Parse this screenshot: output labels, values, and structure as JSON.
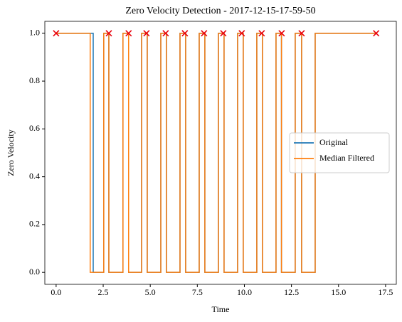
{
  "chart_data": {
    "type": "line",
    "title": "Zero Velocity Detection - 2017-12-15-17-59-50",
    "x_label": "Time",
    "y_label": "Zero Velocity",
    "xlim": [
      -0.6,
      18.07
    ],
    "ylim": [
      -0.05,
      1.05
    ],
    "xticks": [
      {
        "value": 0,
        "label": "0.0"
      },
      {
        "value": 2.5,
        "label": "2.5"
      },
      {
        "value": 5,
        "label": "5.0"
      },
      {
        "value": 7.5,
        "label": "7.5"
      },
      {
        "value": 10,
        "label": "10.0"
      },
      {
        "value": 12.5,
        "label": "12.5"
      },
      {
        "value": 15,
        "label": "15.0"
      },
      {
        "value": 17.5,
        "label": "17.5"
      }
    ],
    "yticks": [
      {
        "value": 0,
        "label": "0.0"
      },
      {
        "value": 0.2,
        "label": "0.2"
      },
      {
        "value": 0.4,
        "label": "0.4"
      },
      {
        "value": 0.6,
        "label": "0.6"
      },
      {
        "value": 0.8,
        "label": "0.8"
      },
      {
        "value": 1,
        "label": "1.0"
      }
    ],
    "legend": "center right",
    "series": [
      {
        "name": "Original",
        "color": "#1f77b4",
        "x": [
          0,
          1.97,
          1.97,
          2.53,
          2.53,
          2.8,
          2.8,
          3.55,
          3.55,
          3.85,
          3.85,
          4.54,
          4.54,
          4.84,
          4.84,
          5.56,
          5.56,
          5.86,
          5.86,
          6.58,
          6.58,
          6.88,
          6.88,
          7.6,
          7.6,
          7.9,
          7.9,
          8.62,
          8.62,
          8.92,
          8.92,
          9.64,
          9.64,
          9.94,
          9.94,
          10.66,
          10.66,
          10.96,
          10.96,
          11.68,
          11.68,
          11.97,
          11.97,
          12.7,
          12.7,
          13.04,
          13.04,
          13.76,
          13.76,
          17
        ],
        "values": [
          1,
          1,
          0,
          0,
          1,
          1,
          0,
          0,
          1,
          1,
          0,
          0,
          1,
          1,
          0,
          0,
          1,
          1,
          0,
          0,
          1,
          1,
          0,
          0,
          1,
          1,
          0,
          0,
          1,
          1,
          0,
          0,
          1,
          1,
          0,
          0,
          1,
          1,
          0,
          0,
          1,
          1,
          0,
          0,
          1,
          1,
          0,
          0,
          1,
          1
        ]
      },
      {
        "name": "Median Filtered",
        "color": "#ff7f0e",
        "x": [
          0,
          1.81,
          1.81,
          2.53,
          2.53,
          2.8,
          2.8,
          3.55,
          3.55,
          3.85,
          3.85,
          4.54,
          4.54,
          4.84,
          4.84,
          5.56,
          5.56,
          5.86,
          5.86,
          6.58,
          6.58,
          6.88,
          6.88,
          7.6,
          7.6,
          7.9,
          7.9,
          8.62,
          8.62,
          8.92,
          8.92,
          9.64,
          9.64,
          9.94,
          9.94,
          10.66,
          10.66,
          10.96,
          10.96,
          11.68,
          11.68,
          11.97,
          11.97,
          12.7,
          12.7,
          13.04,
          13.04,
          13.76,
          13.76,
          17
        ],
        "values": [
          1,
          1,
          0,
          0,
          1,
          1,
          0,
          0,
          1,
          1,
          0,
          0,
          1,
          1,
          0,
          0,
          1,
          1,
          0,
          0,
          1,
          1,
          0,
          0,
          1,
          1,
          0,
          0,
          1,
          1,
          0,
          0,
          1,
          1,
          0,
          0,
          1,
          1,
          0,
          0,
          1,
          1,
          0,
          0,
          1,
          1,
          0,
          0,
          1,
          1
        ]
      }
    ],
    "markers": {
      "color": "#e8000b",
      "x": [
        0,
        2.8,
        3.85,
        4.8,
        5.82,
        6.84,
        7.86,
        8.88,
        9.86,
        10.92,
        11.98,
        13.04,
        17
      ],
      "values": [
        1,
        1,
        1,
        1,
        1,
        1,
        1,
        1,
        1,
        1,
        1,
        1,
        1
      ]
    }
  }
}
